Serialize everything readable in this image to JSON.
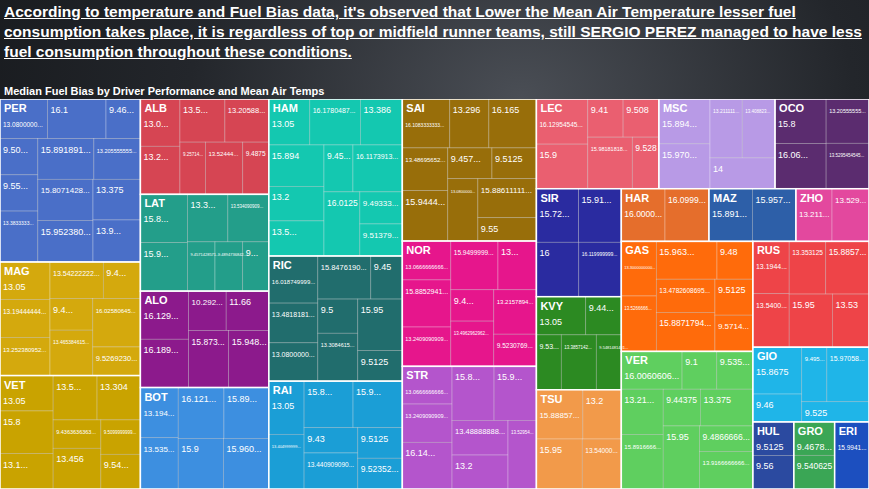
{
  "chart_data": {
    "type": "treemap",
    "annotation": "According to temperature and Fuel Bias data, it's observed that Lower the Mean Air Temperature lesser fuel consumption takes place, it is regardless of top or midfield runner teams, still SERGIO PEREZ managed to have less fuel consumption throughout these conditions.",
    "title": "Median Fuel Bias by Driver Performance and Mean Air Temps",
    "data_labels": true,
    "tick_labels": false,
    "series": [
      {
        "name": "PER",
        "color": "#4a6fc8",
        "values": [
          13.08,
          16.1,
          9.46,
          9.5,
          9.55,
          13.3833333,
          15.891891,
          13.205555555,
          15.8071428,
          15.95238,
          13.375,
          13.9
        ],
        "value_labels": [
          "13.0800000...",
          "16.1",
          "9.46...",
          "9.50...",
          "9.55...",
          "13.3833333...",
          "15.891891...",
          "13.205555555...",
          "15.8071428...",
          "15.952380...",
          "13.375",
          "13.9..."
        ]
      },
      {
        "name": "MAG",
        "color": "#d4a90d",
        "values": [
          13.05,
          13.19444444,
          13.252380952,
          13.54222222,
          9.4,
          9.4,
          13.465384615,
          16.02580645,
          9.526923
        ],
        "value_labels": [
          "13.05",
          "13.19444444...",
          "13.252380952...",
          "13.54222222...",
          "9.4...",
          "9.4...",
          "13.465384615...",
          "16.02580645...",
          "9.5269230..."
        ]
      },
      {
        "name": "VET",
        "color": "#c9a300",
        "values": [
          13.05,
          15.8,
          13.1,
          13.5,
          13.304,
          9.4363636363,
          13.456,
          9.5099999999,
          9.54
        ],
        "value_labels": [
          "13.05",
          "15.8",
          "13.1...",
          "13.5...",
          "13.304",
          "9.4363636363...",
          "13.456",
          "9.5099999999...",
          "9.54..."
        ]
      },
      {
        "name": "ALB",
        "color": "#d64553",
        "values": [
          13.0,
          13.2,
          13.5,
          13.20588,
          9.25714,
          13.52444,
          9.4875
        ],
        "value_labels": [
          "13.0...",
          "13.2...",
          "13.5...",
          "13.20588...",
          "9.25714...",
          "13.52444...",
          "9.4875"
        ]
      },
      {
        "name": "LAT",
        "color": "#239e8a",
        "values": [
          15.8,
          15.9,
          13.3,
          13.534090909,
          9.4571428571,
          9.4894736842,
          9
        ],
        "value_labels": [
          "15.8...",
          "15.9...",
          "13.3...",
          "13.534090909...",
          "9.4571428571...",
          "9.4894736842...",
          "9..."
        ]
      },
      {
        "name": "ALO",
        "color": "#8c1a8c",
        "values": [
          16.129,
          16.189,
          10.292,
          11.66,
          15.873,
          15.948
        ],
        "value_labels": [
          "16.129...",
          "16.189...",
          "10.292...",
          "11.66",
          "15.873...",
          "15.948..."
        ]
      },
      {
        "name": "BOT",
        "color": "#3d8fe0",
        "values": [
          13.194,
          13.535,
          16.121,
          15.89,
          15.9,
          15.96
        ],
        "value_labels": [
          "13.194...",
          "13.535...",
          "16.121...",
          "15.89...",
          "15.9",
          "15.960..."
        ]
      },
      {
        "name": "HAM",
        "color": "#14c8b0",
        "values": [
          13.05,
          16.1780487,
          13.386,
          15.894,
          13.2,
          13.5,
          9.45,
          16.1173913,
          16.0125,
          9.49333,
          9.51379
        ],
        "value_labels": [
          "13.05",
          "16.1780487...",
          "13.386",
          "15.894",
          "13.2",
          "13.5...",
          "9.45...",
          "16.1173913...",
          "16.0125",
          "9.49333...",
          "9.51379..."
        ]
      },
      {
        "name": "RIC",
        "color": "#216d6d",
        "values": [
          16.018749999,
          13.4818181,
          13.08,
          15.847619,
          9.45,
          9.5,
          13.3084615,
          15.95,
          9.5125
        ],
        "value_labels": [
          "16.018749999...",
          "13.4818181...",
          "13.0800000...",
          "15.8476190...",
          "9.45",
          "9.5",
          "13.3084615...",
          "15.95",
          "9.5125"
        ]
      },
      {
        "name": "RAI",
        "color": "#1b9ed6",
        "values": [
          13.05,
          13.404999999,
          15.8,
          15.9,
          9.43,
          13.44090909,
          9.5125,
          9.52352
        ],
        "value_labels": [
          "13.05",
          "13.404999999...",
          "15.8...",
          "15.9...",
          "9.43",
          "13.440909090...",
          "9.5125",
          "9.52352..."
        ]
      },
      {
        "name": "SAI",
        "color": "#986e0a",
        "values": [
          16.1083333333,
          13.296,
          16.165,
          13.48695652,
          15.9444,
          9.457,
          9.5125,
          13.08,
          15.88611111,
          9.55
        ],
        "value_labels": [
          "16.1083333333...",
          "13.296",
          "16.165",
          "13.48695652...",
          "15.9444...",
          "9.457...",
          "9.5125",
          "13.0800000...",
          "15.88611111...",
          "9.55"
        ]
      },
      {
        "name": "NOR",
        "color": "#e6168c",
        "values": [
          13.0666666666,
          15.8852941,
          13.2409090909,
          15.9499999,
          13,
          9.4,
          13.4962962962,
          13.2157894,
          9.5230769
        ],
        "value_labels": [
          "13.0666666666...",
          "15.8852941...",
          "13.2409090909...",
          "15.9499999...",
          "13...",
          "9.4...",
          "13.4962962962...",
          "13.2157894...",
          "9.5230769..."
        ]
      },
      {
        "name": "STR",
        "color": "#b455cc",
        "values": [
          13.0666666666,
          13.2409090909,
          16.14,
          15.8,
          15.9,
          13.48888888,
          13.2,
          13.52954
        ],
        "value_labels": [
          "13.0666666666...",
          "13.2409090909...",
          "16.14...",
          "15.8...",
          "15.9...",
          "13.48888888...",
          "13.2",
          "13.52954..."
        ]
      },
      {
        "name": "LEC",
        "color": "#ea5f70",
        "values": [
          16.12954545,
          15.9,
          9.41,
          9.508,
          15.98181818,
          9.528
        ],
        "value_labels": [
          "16.12954545...",
          "15.9",
          "9.41",
          "9.508",
          "15.98181818...",
          "9.528"
        ]
      },
      {
        "name": "MSC",
        "color": "#b89ae6",
        "values": [
          15.894,
          15.97,
          13.211111,
          13.408823,
          14
        ],
        "value_labels": [
          "15.894...",
          "15.970...",
          "13.211111...",
          "13.408823...",
          "14"
        ]
      },
      {
        "name": "OCO",
        "color": "#5b2c6f",
        "values": [
          15.8,
          16.06,
          13.20555555,
          13.5295454545
        ],
        "value_labels": [
          "15.8",
          "16.06...",
          "13.20555555...",
          "13.5295454545..."
        ]
      },
      {
        "name": "SIR",
        "color": "#2a2ba0",
        "values": [
          15.72,
          15.91,
          16,
          16.119999999
        ],
        "value_labels": [
          "15.72...",
          "15.91...",
          "16",
          "16.119999999..."
        ]
      },
      {
        "name": "KVY",
        "color": "#2c8a22",
        "values": [
          13.05,
          9.44,
          9.53,
          13.3857142,
          9.5481481481
        ],
        "value_labels": [
          "13.05",
          "9.44...",
          "9.53...",
          "13.3857142...",
          "9.5481481481..."
        ]
      },
      {
        "name": "TSU",
        "color": "#f29a4a",
        "values": [
          15.88857,
          13.2,
          15.95,
          13.54
        ],
        "value_labels": [
          "15.88857...",
          "13.2",
          "15.95",
          "13.54000..."
        ]
      },
      {
        "name": "HAR",
        "color": "#e56e2c",
        "values": [
          16.0,
          16.0999
        ],
        "value_labels": [
          "16.0000...",
          "16.0999..."
        ]
      },
      {
        "name": "MAZ",
        "color": "#2d5fa8",
        "values": [
          15.891,
          15.957
        ],
        "value_labels": [
          "15.891...",
          "15.957..."
        ]
      },
      {
        "name": "ZHO",
        "color": "#e3489e",
        "values": [
          13.211,
          13.529
        ],
        "value_labels": [
          "13.211...",
          "13.529..."
        ]
      },
      {
        "name": "GAS",
        "color": "#ff6b0b",
        "values": [
          13.3,
          13.5266666,
          15.963,
          9.48,
          13.4782608695,
          15.8871794,
          9.5125,
          9.5714
        ],
        "value_labels": [
          "13.3000000000...",
          "13.5266666...",
          "15.963...",
          "9.48",
          "13.4782608695...",
          "15.8871794...",
          "9.5125",
          "9.5714..."
        ]
      },
      {
        "name": "VER",
        "color": "#5fcf5f",
        "values": [
          16.0060606,
          9.1,
          9.535,
          13.21,
          15.8916666,
          9.44375,
          13.375,
          15.95,
          9.4866666,
          13.9166666666
        ],
        "value_labels": [
          "16.0060606...",
          "9.1",
          "9.535...",
          "13.21...",
          "15.8916666...",
          "9.44375",
          "13.375",
          "15.95",
          "9.4866666...",
          "13.9166666666..."
        ]
      },
      {
        "name": "RUS",
        "color": "#ee4448",
        "values": [
          13.1944,
          13.54,
          13.353125,
          15.8857,
          15.95,
          13.53
        ],
        "value_labels": [
          "13.1944...",
          "13.5400...",
          "13.353125",
          "15.8857...",
          "15.95",
          "13.53"
        ]
      },
      {
        "name": "GIO",
        "color": "#1fb5e8",
        "values": [
          15.8675,
          9.46,
          9.495,
          15.97058,
          9.525
        ],
        "value_labels": [
          "15.8675",
          "9.46",
          "9.495...",
          "15.97058...",
          "9.525"
        ]
      },
      {
        "name": "HUL",
        "color": "#2b4aa0",
        "values": [
          9.5125,
          9.56
        ],
        "value_labels": [
          "9.5125",
          "9.56"
        ]
      },
      {
        "name": "GRO",
        "color": "#3aa655",
        "values": [
          9.4678,
          9.540625
        ],
        "value_labels": [
          "9.4678...",
          "9.540625"
        ]
      },
      {
        "name": "ERI",
        "color": "#1c4fbf",
        "values": [
          15.9941
        ],
        "value_labels": [
          "15.9941..."
        ]
      }
    ]
  }
}
